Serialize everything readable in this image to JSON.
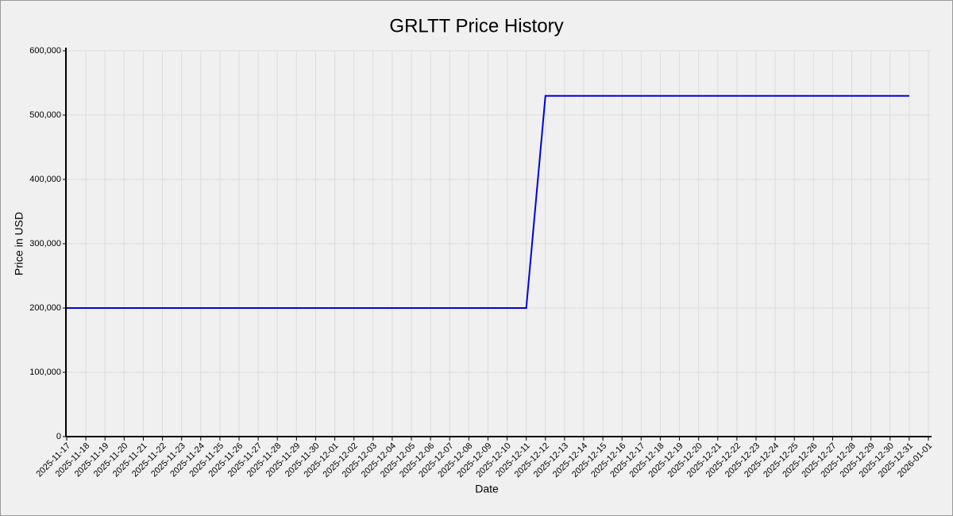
{
  "chart_data": {
    "type": "line",
    "title": "GRLTT Price History",
    "x_label": "Date",
    "y_label": "Price in USD",
    "x": [
      "2025-11-17",
      "2025-11-18",
      "2025-11-19",
      "2025-11-20",
      "2025-11-21",
      "2025-11-22",
      "2025-11-23",
      "2025-11-24",
      "2025-11-25",
      "2025-11-26",
      "2025-11-27",
      "2025-11-28",
      "2025-11-29",
      "2025-11-30",
      "2025-12-01",
      "2025-12-02",
      "2025-12-03",
      "2025-12-04",
      "2025-12-05",
      "2025-12-06",
      "2025-12-07",
      "2025-12-08",
      "2025-12-09",
      "2025-12-10",
      "2025-12-11",
      "2025-12-12",
      "2025-12-13",
      "2025-12-14",
      "2025-12-15",
      "2025-12-16",
      "2025-12-17",
      "2025-12-18",
      "2025-12-19",
      "2025-12-20",
      "2025-12-21",
      "2025-12-22",
      "2025-12-23",
      "2025-12-24",
      "2025-12-25",
      "2025-12-26",
      "2025-12-27",
      "2025-12-28",
      "2025-12-29",
      "2025-12-30",
      "2025-12-31"
    ],
    "series": [
      {
        "name": "GRLTT",
        "color": "#0000dd",
        "values": [
          200000,
          200000,
          200000,
          200000,
          200000,
          200000,
          200000,
          200000,
          200000,
          200000,
          200000,
          200000,
          200000,
          200000,
          200000,
          200000,
          200000,
          200000,
          200000,
          200000,
          200000,
          200000,
          200000,
          200000,
          200000,
          530000,
          530000,
          530000,
          530000,
          530000,
          530000,
          530000,
          530000,
          530000,
          530000,
          530000,
          530000,
          530000,
          530000,
          530000,
          530000,
          530000,
          530000,
          530000,
          530000
        ]
      }
    ],
    "xlim": [
      "2025-11-17",
      "2026-01-01"
    ],
    "xticks": [
      "2025-11-17",
      "2025-11-18",
      "2025-11-19",
      "2025-11-20",
      "2025-11-21",
      "2025-11-22",
      "2025-11-23",
      "2025-11-24",
      "2025-11-25",
      "2025-11-26",
      "2025-11-27",
      "2025-11-28",
      "2025-11-29",
      "2025-11-30",
      "2025-12-01",
      "2025-12-02",
      "2025-12-03",
      "2025-12-04",
      "2025-12-05",
      "2025-12-06",
      "2025-12-07",
      "2025-12-08",
      "2025-12-09",
      "2025-12-10",
      "2025-12-11",
      "2025-12-12",
      "2025-12-13",
      "2025-12-14",
      "2025-12-15",
      "2025-12-16",
      "2025-12-17",
      "2025-12-18",
      "2025-12-19",
      "2025-12-20",
      "2025-12-21",
      "2025-12-22",
      "2025-12-23",
      "2025-12-24",
      "2025-12-25",
      "2025-12-26",
      "2025-12-27",
      "2025-12-28",
      "2025-12-29",
      "2025-12-30",
      "2025-12-31",
      "2026-01-01"
    ],
    "ylim": [
      0,
      600000
    ],
    "yticks": [
      0,
      {
        "value": 100000,
        "label": "100,000"
      },
      {
        "value": 200000,
        "label": "200,000"
      },
      {
        "value": 300000,
        "label": "300,000"
      },
      {
        "value": 400000,
        "label": "400,000"
      },
      {
        "value": 500000,
        "label": "500,000"
      },
      {
        "value": 600000,
        "label": "600,000"
      }
    ],
    "grid": true
  }
}
